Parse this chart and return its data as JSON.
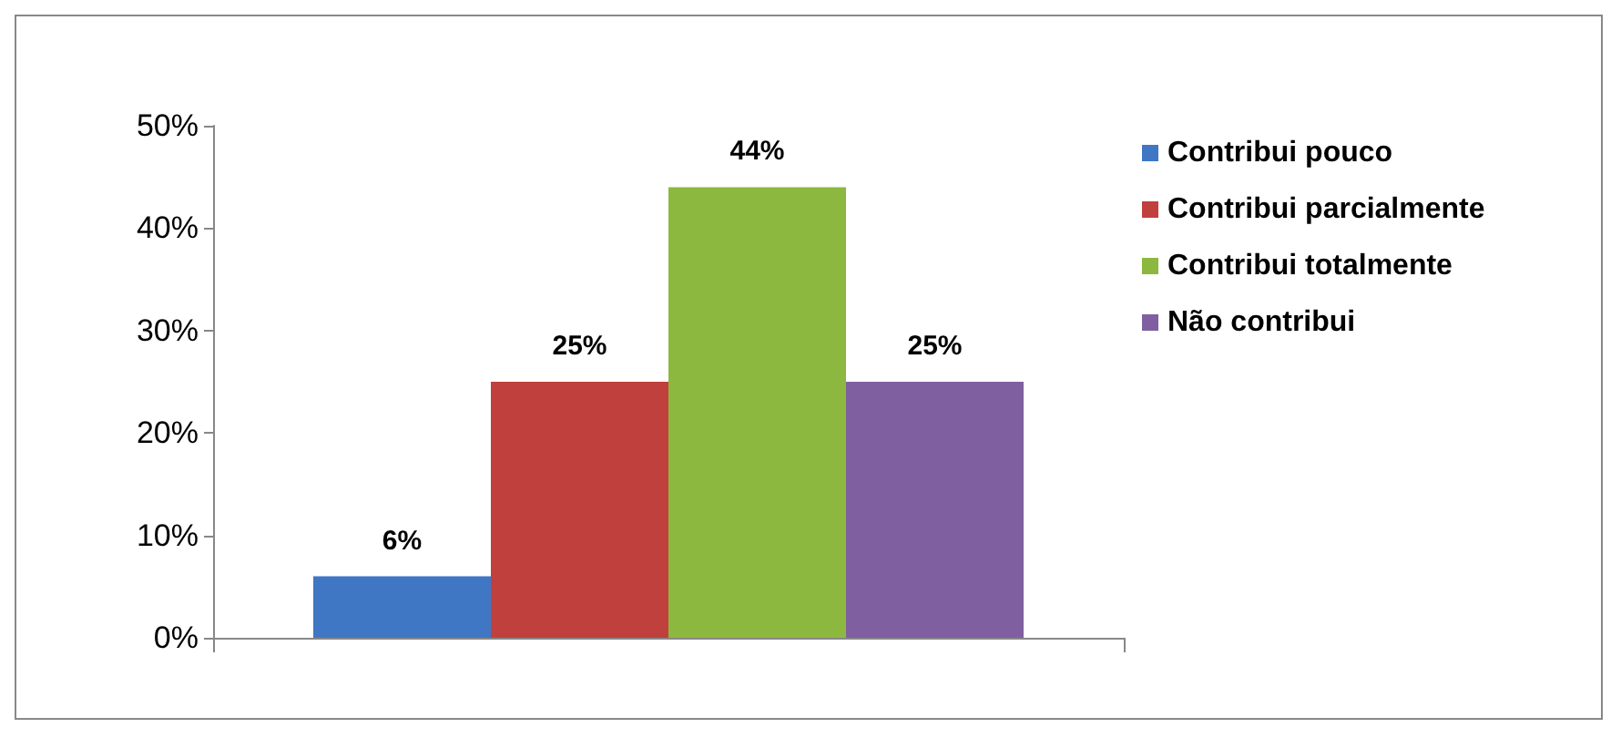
{
  "chart_data": {
    "type": "bar",
    "categories": [
      null
    ],
    "series": [
      {
        "name": "Contribui pouco",
        "color": "#3f77c4",
        "values": [
          6
        ],
        "value_labels": [
          "6%"
        ]
      },
      {
        "name": "Contribui parcialmente",
        "color": "#c0403d",
        "values": [
          25
        ],
        "value_labels": [
          "25%"
        ]
      },
      {
        "name": "Contribui totalmente",
        "color": "#8db83f",
        "values": [
          44
        ],
        "value_labels": [
          "44%"
        ]
      },
      {
        "name": "Não contribui",
        "color": "#7f5fa0",
        "values": [
          25
        ],
        "value_labels": [
          "25%"
        ]
      }
    ],
    "ylim": [
      0,
      50
    ],
    "yticks": [
      {
        "value": 0,
        "label": "0%"
      },
      {
        "value": 10,
        "label": "10%"
      },
      {
        "value": 20,
        "label": "20%"
      },
      {
        "value": 30,
        "label": "30%"
      },
      {
        "value": 40,
        "label": "40%"
      },
      {
        "value": 50,
        "label": "50%"
      }
    ],
    "legend": "top right",
    "grid": false
  }
}
